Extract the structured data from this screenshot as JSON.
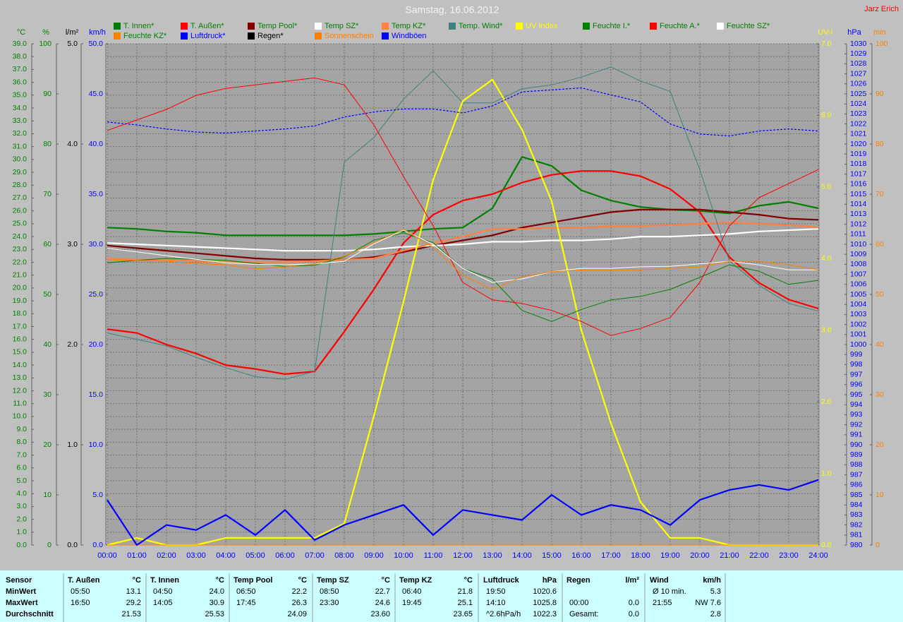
{
  "chart_data": {
    "type": "line",
    "title": "Samstag, 16.06.2012",
    "credit": "Jarz Erich",
    "grid": true,
    "x": [
      "00:00",
      "01:00",
      "02:00",
      "03:00",
      "04:00",
      "05:00",
      "06:00",
      "07:00",
      "08:00",
      "09:00",
      "10:00",
      "11:00",
      "12:00",
      "13:00",
      "14:00",
      "15:00",
      "16:00",
      "17:00",
      "18:00",
      "19:00",
      "20:00",
      "21:00",
      "22:00",
      "23:00",
      "24:00"
    ],
    "axes": [
      {
        "label": "°C",
        "color": "#008000",
        "side": "left",
        "lim": [
          0,
          39
        ],
        "ticks": [
          {
            "value": 0,
            "label": "0.0"
          },
          {
            "value": 1,
            "label": "1.0"
          },
          {
            "value": 2,
            "label": "2.0"
          },
          {
            "value": 3,
            "label": "3.0"
          },
          {
            "value": 4,
            "label": "4.0"
          },
          {
            "value": 5,
            "label": "5.0"
          },
          {
            "value": 6,
            "label": "6.0"
          },
          {
            "value": 7,
            "label": "7.0"
          },
          {
            "value": 8,
            "label": "8.0"
          },
          {
            "value": 9,
            "label": "9.0"
          },
          {
            "value": 10,
            "label": "10.0"
          },
          {
            "value": 11,
            "label": "11.0"
          },
          {
            "value": 12,
            "label": "12.0"
          },
          {
            "value": 13,
            "label": "13.0"
          },
          {
            "value": 14,
            "label": "14.0"
          },
          {
            "value": 15,
            "label": "15.0"
          },
          {
            "value": 16,
            "label": "16.0"
          },
          {
            "value": 17,
            "label": "17.0"
          },
          {
            "value": 18,
            "label": "18.0"
          },
          {
            "value": 19,
            "label": "19.0"
          },
          {
            "value": 20,
            "label": "20.0"
          },
          {
            "value": 21,
            "label": "21.0"
          },
          {
            "value": 22,
            "label": "22.0"
          },
          {
            "value": 23,
            "label": "23.0"
          },
          {
            "value": 24,
            "label": "24.0"
          },
          {
            "value": 25,
            "label": "25.0"
          },
          {
            "value": 26,
            "label": "26.0"
          },
          {
            "value": 27,
            "label": "27.0"
          },
          {
            "value": 28,
            "label": "28.0"
          },
          {
            "value": 29,
            "label": "29.0"
          },
          {
            "value": 30,
            "label": "30.0"
          },
          {
            "value": 31,
            "label": "31.0"
          },
          {
            "value": 32,
            "label": "32.0"
          },
          {
            "value": 33,
            "label": "33.0"
          },
          {
            "value": 34,
            "label": "34.0"
          },
          {
            "value": 35,
            "label": "35.0"
          },
          {
            "value": 36,
            "label": "36.0"
          },
          {
            "value": 37,
            "label": "37.0"
          },
          {
            "value": 38,
            "label": "38.0"
          },
          {
            "value": 39,
            "label": "39.0"
          }
        ]
      },
      {
        "label": "%",
        "color": "#008000",
        "side": "left",
        "lim": [
          0,
          100
        ],
        "ticks": [
          0,
          10,
          20,
          30,
          40,
          50,
          60,
          70,
          80,
          90,
          100
        ]
      },
      {
        "label": "l/m²",
        "color": "#000000",
        "side": "left",
        "lim": [
          0,
          5
        ],
        "ticks": [
          {
            "value": 0,
            "label": "0.0"
          },
          {
            "value": 1,
            "label": "1.0"
          },
          {
            "value": 2,
            "label": "2.0"
          },
          {
            "value": 3,
            "label": "3.0"
          },
          {
            "value": 4,
            "label": "4.0"
          },
          {
            "value": 5,
            "label": "5.0"
          }
        ]
      },
      {
        "label": "km/h",
        "color": "#0000ff",
        "side": "left",
        "lim": [
          0,
          50
        ],
        "ticks": [
          {
            "value": 0,
            "label": "0.0"
          },
          {
            "value": 5,
            "label": "5.0"
          },
          {
            "value": 10,
            "label": "10.0"
          },
          {
            "value": 15,
            "label": "15.0"
          },
          {
            "value": 20,
            "label": "20.0"
          },
          {
            "value": 25,
            "label": "25.0"
          },
          {
            "value": 30,
            "label": "30.0"
          },
          {
            "value": 35,
            "label": "35.0"
          },
          {
            "value": 40,
            "label": "40.0"
          },
          {
            "value": 45,
            "label": "45.0"
          },
          {
            "value": 50,
            "label": "50.0"
          }
        ]
      },
      {
        "label": "UV-I",
        "color": "#ffff00",
        "side": "right",
        "lim": [
          0,
          7
        ],
        "ticks": [
          {
            "value": 0,
            "label": "0.0"
          },
          {
            "value": 1,
            "label": "1.0"
          },
          {
            "value": 2,
            "label": "2.0"
          },
          {
            "value": 3,
            "label": "3.0"
          },
          {
            "value": 4,
            "label": "4.0"
          },
          {
            "value": 5,
            "label": "5.0"
          },
          {
            "value": 6,
            "label": "6.0"
          },
          {
            "value": 7,
            "label": "7.0"
          }
        ]
      },
      {
        "label": "hPa",
        "color": "#0000ff",
        "side": "right",
        "lim": [
          980,
          1030
        ],
        "ticks": [
          980,
          981,
          982,
          983,
          984,
          985,
          986,
          987,
          988,
          989,
          990,
          991,
          992,
          993,
          994,
          995,
          996,
          997,
          998,
          999,
          1000,
          1001,
          1002,
          1003,
          1004,
          1005,
          1006,
          1007,
          1008,
          1009,
          1010,
          1011,
          1012,
          1013,
          1014,
          1015,
          1016,
          1017,
          1018,
          1019,
          1020,
          1021,
          1022,
          1023,
          1024,
          1025,
          1026,
          1027,
          1028,
          1029,
          1030
        ]
      },
      {
        "label": "min",
        "color": "#ff8000",
        "side": "right",
        "lim": [
          0,
          100
        ],
        "ticks": [
          0,
          10,
          20,
          30,
          40,
          50,
          60,
          70,
          80,
          90,
          100
        ]
      }
    ],
    "series": [
      {
        "name": "T. Innen*",
        "color": "#008000",
        "axis": 0,
        "style": "thick",
        "values": [
          24.7,
          24.6,
          24.4,
          24.3,
          24.1,
          24.1,
          24.1,
          24.1,
          24.1,
          24.2,
          24.4,
          24.6,
          24.7,
          26.2,
          30.2,
          29.5,
          27.6,
          26.8,
          26.3,
          26.1,
          26.0,
          25.8,
          26.4,
          26.7,
          26.2
        ]
      },
      {
        "name": "T. Außen*",
        "color": "#ff0000",
        "axis": 0,
        "style": "thick",
        "values": [
          16.8,
          16.5,
          15.6,
          14.9,
          14.0,
          13.7,
          13.3,
          13.5,
          16.6,
          19.9,
          23.5,
          25.7,
          26.8,
          27.3,
          28.2,
          28.8,
          29.1,
          29.1,
          28.7,
          27.7,
          25.9,
          22.4,
          20.4,
          19.1,
          18.4
        ]
      },
      {
        "name": "Temp Pool*",
        "color": "#800000",
        "axis": 0,
        "style": "thick",
        "values": [
          23.3,
          23.1,
          22.9,
          22.7,
          22.5,
          22.3,
          22.2,
          22.2,
          22.2,
          22.4,
          22.8,
          23.3,
          23.7,
          24.1,
          24.7,
          25.1,
          25.5,
          25.9,
          26.1,
          26.1,
          26.1,
          25.9,
          25.7,
          25.4,
          25.3
        ]
      },
      {
        "name": "Temp SZ*",
        "color": "#ffffff",
        "axis": 0,
        "style": "thick",
        "values": [
          23.5,
          23.4,
          23.3,
          23.2,
          23.1,
          23.0,
          22.9,
          22.9,
          22.9,
          23.0,
          23.2,
          23.3,
          23.4,
          23.6,
          23.6,
          23.7,
          23.7,
          23.8,
          24.0,
          24.0,
          24.1,
          24.2,
          24.4,
          24.5,
          24.6
        ]
      },
      {
        "name": "Temp KZ*",
        "color": "#ff8040",
        "axis": 0,
        "style": "thick",
        "values": [
          22.3,
          22.2,
          22.2,
          22.1,
          22.0,
          22.0,
          22.0,
          22.1,
          22.2,
          22.3,
          22.9,
          23.5,
          24.0,
          24.6,
          24.6,
          24.7,
          24.7,
          24.8,
          24.8,
          24.9,
          25.0,
          25.1,
          25.0,
          24.9,
          24.7
        ]
      },
      {
        "name": "Temp. Wind*",
        "color": "#408080",
        "axis": 0,
        "style": "thin",
        "values": [
          16.5,
          16.0,
          15.5,
          14.6,
          13.8,
          13.1,
          12.9,
          13.5,
          29.8,
          31.7,
          34.7,
          36.9,
          34.4,
          34.4,
          35.5,
          35.8,
          36.4,
          37.2,
          36.1,
          35.3,
          29.2,
          22.1,
          20.2,
          18.8,
          18.2
        ]
      },
      {
        "name": "UV Index",
        "color": "#ffff00",
        "axis": 4,
        "style": "thick",
        "values": [
          0,
          0.1,
          0,
          0,
          0.1,
          0.1,
          0.1,
          0.1,
          0.3,
          1.8,
          3.4,
          5.1,
          6.2,
          6.5,
          5.8,
          4.8,
          3.0,
          1.7,
          0.6,
          0.1,
          0.1,
          0,
          0,
          0,
          0
        ]
      },
      {
        "name": "Feuchte I.*",
        "color": "#008000",
        "axis": 1,
        "style": "thin",
        "values": [
          56.3,
          56.8,
          57.2,
          57.0,
          56.8,
          56.2,
          55.6,
          55.8,
          57.5,
          60.8,
          62.3,
          60.3,
          55.2,
          53.1,
          46.8,
          44.6,
          47.0,
          48.9,
          49.6,
          51.0,
          53.4,
          55.9,
          54.6,
          52.0,
          52.8
        ]
      },
      {
        "name": "Feuchte A.*",
        "color": "#ff0000",
        "axis": 1,
        "style": "thin",
        "values": [
          82.7,
          84.8,
          86.9,
          89.7,
          91.1,
          91.8,
          92.5,
          93.2,
          91.8,
          83.8,
          73.5,
          63.7,
          52.4,
          48.9,
          48.2,
          46.8,
          44.6,
          41.8,
          43.2,
          45.4,
          52.4,
          63.7,
          69.3,
          72.1,
          74.9
        ]
      },
      {
        "name": "Feuchte SZ*",
        "color": "#ffffff",
        "axis": 1,
        "style": "thin",
        "values": [
          59.2,
          58.5,
          57.7,
          57.0,
          56.3,
          56.0,
          55.9,
          56.1,
          56.6,
          60.1,
          62.8,
          60.0,
          55.2,
          52.4,
          53.1,
          54.5,
          55.2,
          55.2,
          55.5,
          55.6,
          56.1,
          56.6,
          55.9,
          54.9,
          54.9
        ]
      },
      {
        "name": "Feuchte KZ*",
        "color": "#ff8000",
        "axis": 1,
        "style": "thin",
        "values": [
          56.9,
          56.8,
          56.6,
          56.2,
          55.9,
          55.1,
          55.5,
          56.1,
          57.6,
          60.3,
          63.0,
          59.4,
          53.8,
          51.0,
          53.5,
          54.5,
          54.9,
          54.9,
          54.9,
          55.2,
          55.5,
          56.6,
          56.6,
          55.9,
          54.9
        ]
      },
      {
        "name": "Luftdruck*",
        "color": "#0000ff",
        "axis": 5,
        "style": "dashed",
        "values": [
          1022.2,
          1021.9,
          1021.5,
          1021.2,
          1021.1,
          1021.3,
          1021.5,
          1021.8,
          1022.7,
          1023.2,
          1023.5,
          1023.5,
          1023.1,
          1023.8,
          1025.2,
          1025.4,
          1025.6,
          1024.9,
          1024.2,
          1022.0,
          1021.0,
          1020.8,
          1021.3,
          1021.5,
          1021.3
        ]
      },
      {
        "name": "Regen*",
        "color": "#000000",
        "axis": 2,
        "style": "thin",
        "values": [
          0,
          0,
          0,
          0,
          0,
          0,
          0,
          0,
          0,
          0,
          0,
          0,
          0,
          0,
          0,
          0,
          0,
          0,
          0,
          0,
          0,
          0,
          0,
          0,
          0
        ]
      },
      {
        "name": "Sonnenschein",
        "color": "#ff8000",
        "axis": 6,
        "style": "thin",
        "values": [
          0,
          0,
          0,
          0,
          0,
          0,
          0,
          0,
          0,
          0,
          0,
          0,
          0,
          0,
          0,
          0,
          0,
          0,
          0,
          0,
          0,
          0,
          0,
          0,
          0
        ]
      },
      {
        "name": "Windböen",
        "color": "#0000ff",
        "axis": 3,
        "style": "thick",
        "values": [
          4.5,
          0,
          2.0,
          1.5,
          3.0,
          1.0,
          3.5,
          0.5,
          2.0,
          3.0,
          4.0,
          1.0,
          3.5,
          3.0,
          2.5,
          5.0,
          3.0,
          4.0,
          3.5,
          2.0,
          4.5,
          5.5,
          6.0,
          5.5,
          6.5
        ]
      }
    ]
  },
  "table": {
    "header": [
      "Sensor",
      "T. Außen",
      "°C",
      "T. Innen",
      "°C",
      "Temp Pool",
      "°C",
      "Temp SZ",
      "°C",
      "Temp KZ",
      "°C",
      "Luftdruck",
      "hPa",
      "Regen",
      "l/m²",
      "Wind",
      "km/h"
    ],
    "rows": [
      [
        "MinWert",
        "05:50",
        "13.1",
        "04:50",
        "24.0",
        "06:50",
        "22.2",
        "08:50",
        "22.7",
        "06:40",
        "21.8",
        "19:50",
        "1020.6",
        null,
        null,
        "Ø 10 min.",
        "5.3"
      ],
      [
        "MaxWert",
        "16:50",
        "29.2",
        "14:05",
        "30.9",
        "17:45",
        "26.3",
        "23:30",
        "24.6",
        "19:45",
        "25.1",
        "14:10",
        "1025.8",
        "00:00",
        "0.0",
        "21:55",
        "NW 7.6"
      ],
      [
        "Durchschnitt",
        null,
        "21.53",
        null,
        "25.53",
        null,
        "24.09",
        null,
        "23.60",
        null,
        "23.65",
        "^2.6hPa/h",
        "1022.3",
        "Gesamt:",
        "0.0",
        null,
        "2.8"
      ]
    ]
  }
}
